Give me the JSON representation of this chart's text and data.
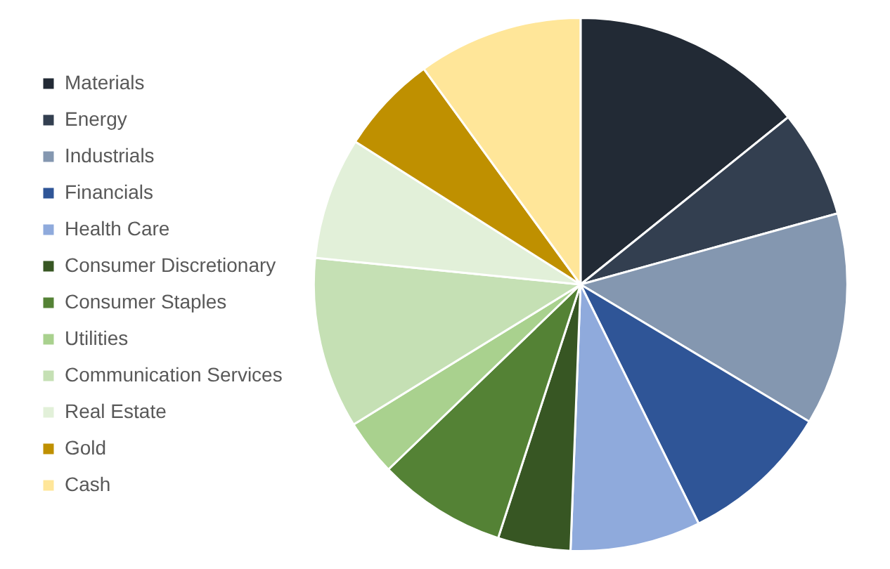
{
  "chart_data": {
    "type": "pie",
    "categories": [
      "Materials",
      "Energy",
      "Industrials",
      "Financials",
      "Health Care",
      "Consumer Discretionary",
      "Consumer Staples",
      "Utilities",
      "Communication Services",
      "Real Estate",
      "Gold",
      "Cash"
    ],
    "values": [
      14.2,
      6.5,
      12.9,
      9.1,
      7.9,
      4.4,
      7.8,
      3.4,
      10.4,
      7.4,
      6.0,
      10.0
    ],
    "colors": [
      "#222a35",
      "#333f50",
      "#8497b0",
      "#2f5597",
      "#8faadc",
      "#375623",
      "#548235",
      "#a9d18e",
      "#c5e0b4",
      "#e2f0d9",
      "#bf9000",
      "#ffe699"
    ],
    "legend": "left"
  }
}
